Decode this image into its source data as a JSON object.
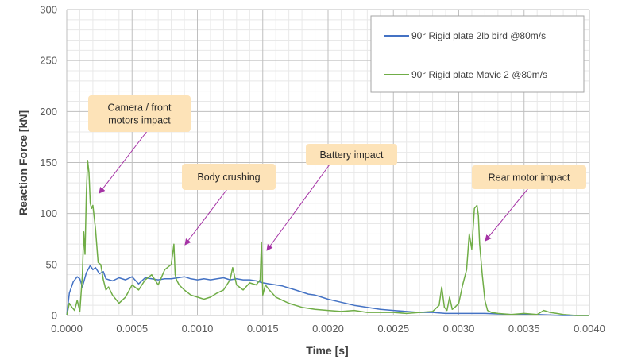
{
  "chart_data": {
    "type": "line",
    "title": "",
    "xlabel": "Time [s]",
    "ylabel": "Reaction Force [kN]",
    "xlim": [
      0,
      0.004
    ],
    "ylim": [
      0,
      300
    ],
    "x_ticks": [
      "0.0000",
      "0.0005",
      "0.0010",
      "0.0015",
      "0.0020",
      "0.0025",
      "0.0030",
      "0.0035",
      "0.0040"
    ],
    "y_ticks": [
      "0",
      "50",
      "100",
      "150",
      "200",
      "250",
      "300"
    ],
    "grid": true,
    "legend_position": "top-right",
    "colors": {
      "bird": "#4472c4",
      "mavic": "#70ad47",
      "callout_fill": "#fde3b8",
      "arrow": "#a532a5"
    },
    "series": [
      {
        "name": "90° Rigid plate  2lb bird @80m/s",
        "x": [
          0,
          2e-05,
          5e-05,
          8e-05,
          0.0001,
          0.00012,
          0.00015,
          0.00018,
          0.0002,
          0.00022,
          0.00025,
          0.00028,
          0.0003,
          0.00035,
          0.0004,
          0.00045,
          0.0005,
          0.00055,
          0.0006,
          0.00065,
          0.0007,
          0.00075,
          0.0008,
          0.00085,
          0.0009,
          0.00095,
          0.001,
          0.00105,
          0.0011,
          0.00115,
          0.0012,
          0.00125,
          0.0013,
          0.00135,
          0.0014,
          0.00145,
          0.0015,
          0.00155,
          0.0016,
          0.00165,
          0.0017,
          0.00175,
          0.0018,
          0.00185,
          0.0019,
          0.00195,
          0.002,
          0.0021,
          0.0022,
          0.0023,
          0.0024,
          0.0025,
          0.0026,
          0.0027,
          0.0028,
          0.0029,
          0.003,
          0.0032,
          0.0034,
          0.0036,
          0.0038,
          0.004
        ],
        "values": [
          0,
          22,
          33,
          38,
          36,
          28,
          42,
          49,
          45,
          47,
          41,
          43,
          36,
          34,
          37,
          35,
          38,
          31,
          37,
          36,
          35,
          36,
          36,
          37,
          38,
          36,
          35,
          36,
          35,
          36,
          37,
          35,
          36,
          35,
          35,
          34,
          32,
          31,
          30,
          29,
          27,
          25,
          23,
          21,
          20,
          18,
          16,
          13,
          10,
          8,
          6,
          5,
          4,
          3,
          3,
          2,
          2,
          2,
          1,
          1,
          0,
          0
        ]
      },
      {
        "name": "90° Rigid plate  Mavic 2 @80m/s",
        "x": [
          0,
          2e-05,
          4e-05,
          6e-05,
          8e-05,
          0.0001,
          0.00012,
          0.00013,
          0.00014,
          0.00015,
          0.00016,
          0.00017,
          0.00018,
          0.00019,
          0.0002,
          0.00022,
          0.00024,
          0.00026,
          0.00028,
          0.0003,
          0.00032,
          0.00035,
          0.0004,
          0.00045,
          0.0005,
          0.00055,
          0.0006,
          0.00065,
          0.0007,
          0.00075,
          0.0008,
          0.00082,
          0.00083,
          0.00084,
          0.00086,
          0.0009,
          0.00095,
          0.001,
          0.00105,
          0.0011,
          0.00115,
          0.0012,
          0.00125,
          0.00127,
          0.0013,
          0.00135,
          0.0014,
          0.00145,
          0.00148,
          0.00149,
          0.0015,
          0.00152,
          0.00155,
          0.0016,
          0.00165,
          0.0017,
          0.00175,
          0.0018,
          0.00185,
          0.0019,
          0.002,
          0.0021,
          0.0022,
          0.0023,
          0.0024,
          0.0025,
          0.0026,
          0.0027,
          0.0028,
          0.00285,
          0.00287,
          0.00289,
          0.00291,
          0.00293,
          0.00295,
          0.00297,
          0.003,
          0.00303,
          0.00306,
          0.00308,
          0.0031,
          0.00312,
          0.00314,
          0.00315,
          0.00316,
          0.00318,
          0.0032,
          0.00322,
          0.00325,
          0.0033,
          0.0034,
          0.0035,
          0.0036,
          0.00365,
          0.0037,
          0.00375,
          0.0038,
          0.0039,
          0.004
        ],
        "values": [
          0,
          12,
          8,
          5,
          15,
          4,
          40,
          82,
          60,
          120,
          152,
          140,
          110,
          105,
          108,
          85,
          52,
          50,
          35,
          25,
          28,
          20,
          12,
          18,
          30,
          25,
          35,
          40,
          30,
          45,
          50,
          70,
          40,
          35,
          30,
          25,
          20,
          18,
          16,
          18,
          22,
          25,
          35,
          47,
          30,
          25,
          32,
          30,
          35,
          72,
          20,
          30,
          25,
          18,
          15,
          12,
          10,
          8,
          7,
          6,
          5,
          4,
          5,
          3,
          3,
          3,
          2,
          3,
          4,
          10,
          28,
          8,
          5,
          18,
          6,
          8,
          12,
          30,
          45,
          80,
          65,
          105,
          108,
          98,
          70,
          40,
          15,
          5,
          3,
          2,
          1,
          2,
          1,
          5,
          3,
          2,
          1,
          0,
          0
        ]
      }
    ],
    "annotations": [
      {
        "text_lines": [
          "Camera / front",
          "motors  impact"
        ]
      },
      {
        "text_lines": [
          "Body crushing"
        ]
      },
      {
        "text_lines": [
          "Battery impact"
        ]
      },
      {
        "text_lines": [
          "Rear motor impact"
        ]
      }
    ]
  }
}
